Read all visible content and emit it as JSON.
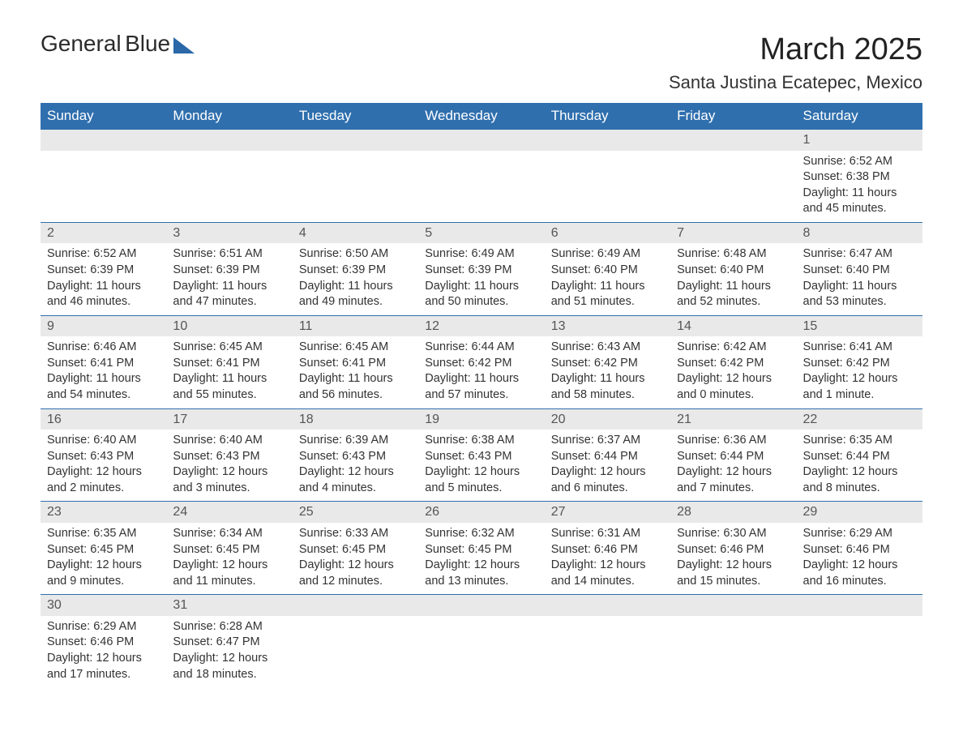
{
  "logo": {
    "word1": "General",
    "word2": "Blue"
  },
  "title": "March 2025",
  "location": "Santa Justina Ecatepec, Mexico",
  "colors": {
    "header_bg": "#2f6fae",
    "header_text": "#ffffff",
    "daynum_bg": "#e9e9e9",
    "border": "#2f6fae",
    "text": "#333333",
    "logo_accent": "#2a68a8"
  },
  "typography": {
    "title_fontsize": 38,
    "location_fontsize": 22,
    "header_fontsize": 17,
    "daynum_fontsize": 16,
    "cell_fontsize": 14.5
  },
  "layout": {
    "columns": 7,
    "aspect": "landscape"
  },
  "calendar": {
    "type": "table",
    "day_headers": [
      "Sunday",
      "Monday",
      "Tuesday",
      "Wednesday",
      "Thursday",
      "Friday",
      "Saturday"
    ],
    "weeks": [
      [
        null,
        null,
        null,
        null,
        null,
        null,
        {
          "n": "1",
          "sunrise": "Sunrise: 6:52 AM",
          "sunset": "Sunset: 6:38 PM",
          "daylight1": "Daylight: 11 hours",
          "daylight2": "and 45 minutes."
        }
      ],
      [
        {
          "n": "2",
          "sunrise": "Sunrise: 6:52 AM",
          "sunset": "Sunset: 6:39 PM",
          "daylight1": "Daylight: 11 hours",
          "daylight2": "and 46 minutes."
        },
        {
          "n": "3",
          "sunrise": "Sunrise: 6:51 AM",
          "sunset": "Sunset: 6:39 PM",
          "daylight1": "Daylight: 11 hours",
          "daylight2": "and 47 minutes."
        },
        {
          "n": "4",
          "sunrise": "Sunrise: 6:50 AM",
          "sunset": "Sunset: 6:39 PM",
          "daylight1": "Daylight: 11 hours",
          "daylight2": "and 49 minutes."
        },
        {
          "n": "5",
          "sunrise": "Sunrise: 6:49 AM",
          "sunset": "Sunset: 6:39 PM",
          "daylight1": "Daylight: 11 hours",
          "daylight2": "and 50 minutes."
        },
        {
          "n": "6",
          "sunrise": "Sunrise: 6:49 AM",
          "sunset": "Sunset: 6:40 PM",
          "daylight1": "Daylight: 11 hours",
          "daylight2": "and 51 minutes."
        },
        {
          "n": "7",
          "sunrise": "Sunrise: 6:48 AM",
          "sunset": "Sunset: 6:40 PM",
          "daylight1": "Daylight: 11 hours",
          "daylight2": "and 52 minutes."
        },
        {
          "n": "8",
          "sunrise": "Sunrise: 6:47 AM",
          "sunset": "Sunset: 6:40 PM",
          "daylight1": "Daylight: 11 hours",
          "daylight2": "and 53 minutes."
        }
      ],
      [
        {
          "n": "9",
          "sunrise": "Sunrise: 6:46 AM",
          "sunset": "Sunset: 6:41 PM",
          "daylight1": "Daylight: 11 hours",
          "daylight2": "and 54 minutes."
        },
        {
          "n": "10",
          "sunrise": "Sunrise: 6:45 AM",
          "sunset": "Sunset: 6:41 PM",
          "daylight1": "Daylight: 11 hours",
          "daylight2": "and 55 minutes."
        },
        {
          "n": "11",
          "sunrise": "Sunrise: 6:45 AM",
          "sunset": "Sunset: 6:41 PM",
          "daylight1": "Daylight: 11 hours",
          "daylight2": "and 56 minutes."
        },
        {
          "n": "12",
          "sunrise": "Sunrise: 6:44 AM",
          "sunset": "Sunset: 6:42 PM",
          "daylight1": "Daylight: 11 hours",
          "daylight2": "and 57 minutes."
        },
        {
          "n": "13",
          "sunrise": "Sunrise: 6:43 AM",
          "sunset": "Sunset: 6:42 PM",
          "daylight1": "Daylight: 11 hours",
          "daylight2": "and 58 minutes."
        },
        {
          "n": "14",
          "sunrise": "Sunrise: 6:42 AM",
          "sunset": "Sunset: 6:42 PM",
          "daylight1": "Daylight: 12 hours",
          "daylight2": "and 0 minutes."
        },
        {
          "n": "15",
          "sunrise": "Sunrise: 6:41 AM",
          "sunset": "Sunset: 6:42 PM",
          "daylight1": "Daylight: 12 hours",
          "daylight2": "and 1 minute."
        }
      ],
      [
        {
          "n": "16",
          "sunrise": "Sunrise: 6:40 AM",
          "sunset": "Sunset: 6:43 PM",
          "daylight1": "Daylight: 12 hours",
          "daylight2": "and 2 minutes."
        },
        {
          "n": "17",
          "sunrise": "Sunrise: 6:40 AM",
          "sunset": "Sunset: 6:43 PM",
          "daylight1": "Daylight: 12 hours",
          "daylight2": "and 3 minutes."
        },
        {
          "n": "18",
          "sunrise": "Sunrise: 6:39 AM",
          "sunset": "Sunset: 6:43 PM",
          "daylight1": "Daylight: 12 hours",
          "daylight2": "and 4 minutes."
        },
        {
          "n": "19",
          "sunrise": "Sunrise: 6:38 AM",
          "sunset": "Sunset: 6:43 PM",
          "daylight1": "Daylight: 12 hours",
          "daylight2": "and 5 minutes."
        },
        {
          "n": "20",
          "sunrise": "Sunrise: 6:37 AM",
          "sunset": "Sunset: 6:44 PM",
          "daylight1": "Daylight: 12 hours",
          "daylight2": "and 6 minutes."
        },
        {
          "n": "21",
          "sunrise": "Sunrise: 6:36 AM",
          "sunset": "Sunset: 6:44 PM",
          "daylight1": "Daylight: 12 hours",
          "daylight2": "and 7 minutes."
        },
        {
          "n": "22",
          "sunrise": "Sunrise: 6:35 AM",
          "sunset": "Sunset: 6:44 PM",
          "daylight1": "Daylight: 12 hours",
          "daylight2": "and 8 minutes."
        }
      ],
      [
        {
          "n": "23",
          "sunrise": "Sunrise: 6:35 AM",
          "sunset": "Sunset: 6:45 PM",
          "daylight1": "Daylight: 12 hours",
          "daylight2": "and 9 minutes."
        },
        {
          "n": "24",
          "sunrise": "Sunrise: 6:34 AM",
          "sunset": "Sunset: 6:45 PM",
          "daylight1": "Daylight: 12 hours",
          "daylight2": "and 11 minutes."
        },
        {
          "n": "25",
          "sunrise": "Sunrise: 6:33 AM",
          "sunset": "Sunset: 6:45 PM",
          "daylight1": "Daylight: 12 hours",
          "daylight2": "and 12 minutes."
        },
        {
          "n": "26",
          "sunrise": "Sunrise: 6:32 AM",
          "sunset": "Sunset: 6:45 PM",
          "daylight1": "Daylight: 12 hours",
          "daylight2": "and 13 minutes."
        },
        {
          "n": "27",
          "sunrise": "Sunrise: 6:31 AM",
          "sunset": "Sunset: 6:46 PM",
          "daylight1": "Daylight: 12 hours",
          "daylight2": "and 14 minutes."
        },
        {
          "n": "28",
          "sunrise": "Sunrise: 6:30 AM",
          "sunset": "Sunset: 6:46 PM",
          "daylight1": "Daylight: 12 hours",
          "daylight2": "and 15 minutes."
        },
        {
          "n": "29",
          "sunrise": "Sunrise: 6:29 AM",
          "sunset": "Sunset: 6:46 PM",
          "daylight1": "Daylight: 12 hours",
          "daylight2": "and 16 minutes."
        }
      ],
      [
        {
          "n": "30",
          "sunrise": "Sunrise: 6:29 AM",
          "sunset": "Sunset: 6:46 PM",
          "daylight1": "Daylight: 12 hours",
          "daylight2": "and 17 minutes."
        },
        {
          "n": "31",
          "sunrise": "Sunrise: 6:28 AM",
          "sunset": "Sunset: 6:47 PM",
          "daylight1": "Daylight: 12 hours",
          "daylight2": "and 18 minutes."
        },
        null,
        null,
        null,
        null,
        null
      ]
    ]
  }
}
